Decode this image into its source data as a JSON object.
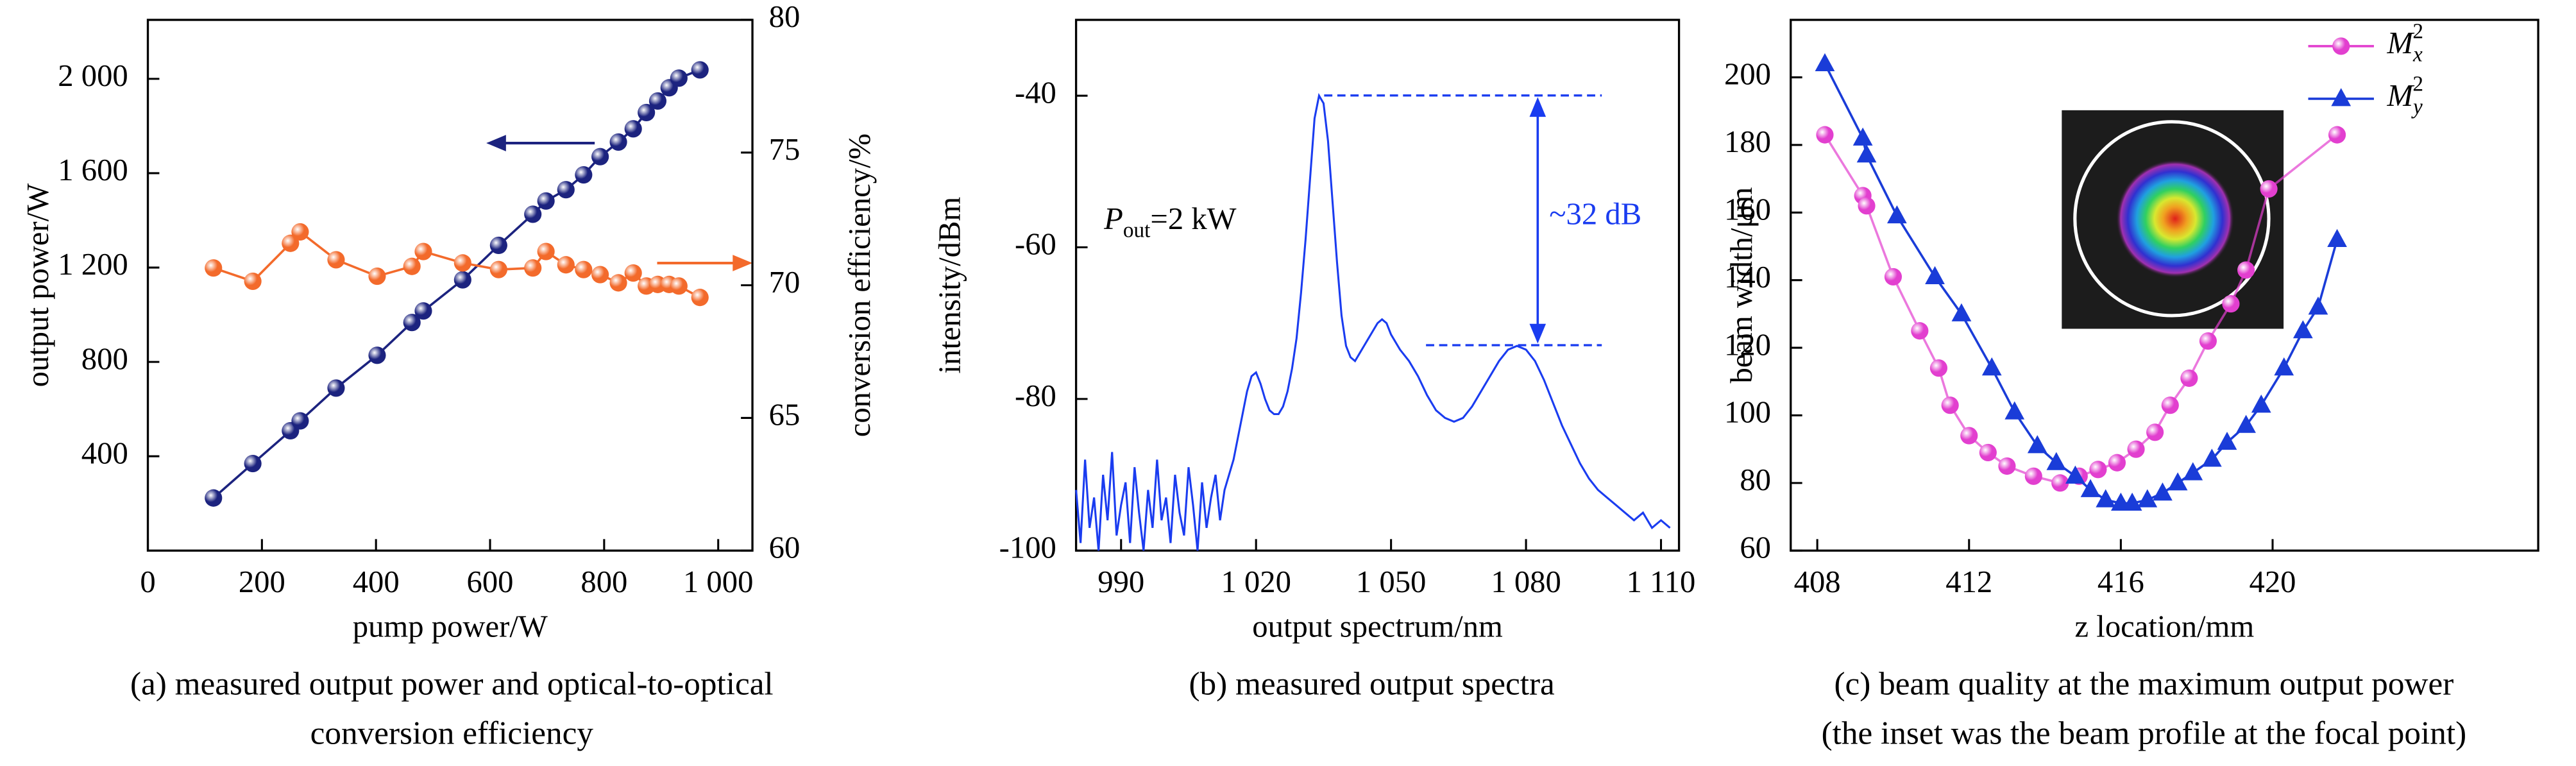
{
  "chart_data": [
    {
      "type": "line",
      "x_label": "pump power/W",
      "y_label": "output power/W",
      "y2_label": "conversion efficiency/%",
      "caption": [
        "(a) measured output power and optical-to-optical",
        "conversion efficiency"
      ],
      "x": [
        115,
        184,
        250,
        267,
        330,
        402,
        463,
        483,
        552,
        615,
        675,
        698,
        733,
        764,
        793,
        825,
        851,
        874,
        894,
        914,
        931,
        968
      ],
      "series": [
        {
          "color": "#1c237f",
          "marker": "circle",
          "values": [
            223,
            369,
            508,
            550,
            689,
            828,
            967,
            1016,
            1148,
            1294,
            1426,
            1482,
            1530,
            1593,
            1670,
            1732,
            1788,
            1857,
            1906,
            1962,
            2003,
            2038
          ]
        },
        {
          "color": "#f36a2b",
          "marker": "circle",
          "axis": "y2",
          "values": [
            70.65,
            70.15,
            71.58,
            72.01,
            70.96,
            70.34,
            70.71,
            71.27,
            70.84,
            70.59,
            70.65,
            71.27,
            70.77,
            70.59,
            70.4,
            70.09,
            70.46,
            69.97,
            70.03,
            70.03,
            69.97,
            69.54
          ]
        }
      ],
      "xlim": [
        0,
        1060
      ],
      "xticks": [
        0,
        200,
        400,
        600,
        800,
        {
          "value": 1000,
          "label": "1 000"
        }
      ],
      "ylim": [
        0,
        2250
      ],
      "yticks": [
        400,
        800,
        {
          "value": 1200,
          "label": "1 200"
        },
        {
          "value": 1600,
          "label": "1 600"
        },
        {
          "value": 2000,
          "label": "2 000"
        }
      ],
      "y2lim": [
        60,
        80
      ],
      "y2ticks": [
        60,
        65,
        70,
        75,
        80
      ]
    },
    {
      "type": "line",
      "x_label": "output spectrum/nm",
      "y_label": "intensity/dBm",
      "caption": [
        "(b) measured output spectra"
      ],
      "annotations": [
        {
          "base": "P",
          "sub": "out",
          "tail": "=2 kW"
        },
        "~32 dB"
      ],
      "x": [
        980,
        981,
        982,
        983,
        984,
        985,
        986,
        987,
        988,
        989,
        990,
        991,
        992,
        993,
        994,
        995,
        996,
        997,
        998,
        999,
        1000,
        1001,
        1002,
        1003,
        1004,
        1005,
        1006,
        1007,
        1008,
        1009,
        1010,
        1011,
        1012,
        1013,
        1014,
        1015,
        1016,
        1017,
        1018,
        1019,
        1020,
        1021,
        1022,
        1023,
        1024,
        1025,
        1026,
        1027,
        1028,
        1029,
        1030,
        1031,
        1032,
        1033,
        1034,
        1035,
        1036,
        1037,
        1038,
        1039,
        1040,
        1041,
        1042,
        1043,
        1044,
        1045,
        1046,
        1047,
        1048,
        1049,
        1050,
        1052,
        1054,
        1056,
        1058,
        1060,
        1062,
        1064,
        1066,
        1068,
        1070,
        1072,
        1074,
        1076,
        1078,
        1080,
        1082,
        1084,
        1086,
        1088,
        1090,
        1092,
        1094,
        1096,
        1098,
        1100,
        1102,
        1104,
        1106,
        1108,
        1110,
        1112
      ],
      "series": [
        {
          "color": "#1a3cf0",
          "values": [
            -92,
            -99,
            -88,
            -97,
            -93,
            -100,
            -90,
            -96,
            -87,
            -98,
            -94,
            -91,
            -99,
            -89,
            -95,
            -100,
            -92,
            -97,
            -88,
            -96,
            -93,
            -99,
            -90,
            -95,
            -98,
            -89,
            -94,
            -100,
            -91,
            -97,
            -93,
            -90,
            -96,
            -92,
            -90,
            -88,
            -85,
            -82,
            -79,
            -77,
            -76.5,
            -78,
            -80,
            -81.5,
            -82,
            -82,
            -81,
            -79,
            -76,
            -72,
            -66,
            -59,
            -51,
            -43,
            -40,
            -41,
            -46,
            -54,
            -62,
            -69,
            -73,
            -74.5,
            -75,
            -74,
            -73,
            -72,
            -71,
            -70,
            -69.5,
            -70,
            -71.5,
            -73.5,
            -75,
            -77,
            -79.5,
            -81.5,
            -82.5,
            -83,
            -82.5,
            -81,
            -79,
            -77,
            -75,
            -73.5,
            -73,
            -73.5,
            -75,
            -77.5,
            -80.5,
            -83.5,
            -86,
            -88.5,
            -90.5,
            -92,
            -93,
            -94,
            -95,
            -96,
            -95,
            -97,
            -96,
            -97
          ]
        }
      ],
      "xlim": [
        980,
        1114
      ],
      "xticks": [
        990,
        {
          "value": 1020,
          "label": "1 020"
        },
        {
          "value": 1050,
          "label": "1 050"
        },
        {
          "value": 1080,
          "label": "1 080"
        },
        {
          "value": 1110,
          "label": "1 110"
        }
      ],
      "ylim": [
        -100,
        -30
      ],
      "yticks": [
        -100,
        -80,
        -60,
        -40
      ]
    },
    {
      "type": "line",
      "x_label": "z location/mm",
      "y_label": "beam width/μm",
      "caption": [
        "(c) beam quality at the maximum output power",
        "(the inset was the beam profile at the focal point)"
      ],
      "legend": "upper right",
      "series": [
        {
          "name": "M",
          "name_sub": "x",
          "name_sup": "2",
          "color": "#e23fcf",
          "marker": "circle",
          "x": [
            408.2,
            409.2,
            409.3,
            410.0,
            410.7,
            411.2,
            411.5,
            412.0,
            412.5,
            413.0,
            413.7,
            414.4,
            414.9,
            415.4,
            415.9,
            416.4,
            416.9,
            417.3,
            417.8,
            418.3,
            418.9,
            419.3,
            419.9,
            421.7
          ],
          "values": [
            183,
            165,
            162,
            141,
            125,
            114,
            103,
            94,
            89,
            85,
            82,
            80,
            82,
            84,
            86,
            90,
            95,
            103,
            111,
            122,
            133,
            143,
            167,
            183
          ]
        },
        {
          "name": "M",
          "name_sub": "y",
          "name_sup": "2",
          "color": "#1a3cd8",
          "marker": "triangle",
          "x": [
            408.2,
            409.2,
            409.3,
            410.1,
            411.1,
            411.8,
            412.6,
            413.2,
            413.8,
            414.3,
            414.8,
            415.2,
            415.6,
            416.0,
            416.3,
            416.7,
            417.1,
            417.5,
            417.9,
            418.4,
            418.8,
            419.3,
            419.7,
            420.3,
            420.8,
            421.2,
            421.7
          ],
          "values": [
            204,
            182,
            177,
            159,
            141,
            130,
            114,
            101,
            91,
            86,
            82,
            78,
            75,
            74,
            74,
            75,
            77,
            80,
            83,
            87,
            92,
            97,
            103,
            114,
            125,
            132,
            152
          ]
        }
      ],
      "xlim": [
        407.3,
        427
      ],
      "xticks": [
        408,
        412,
        416,
        420
      ],
      "ylim": [
        60,
        217
      ],
      "yticks": [
        60,
        80,
        100,
        120,
        140,
        160,
        180,
        200
      ]
    }
  ]
}
